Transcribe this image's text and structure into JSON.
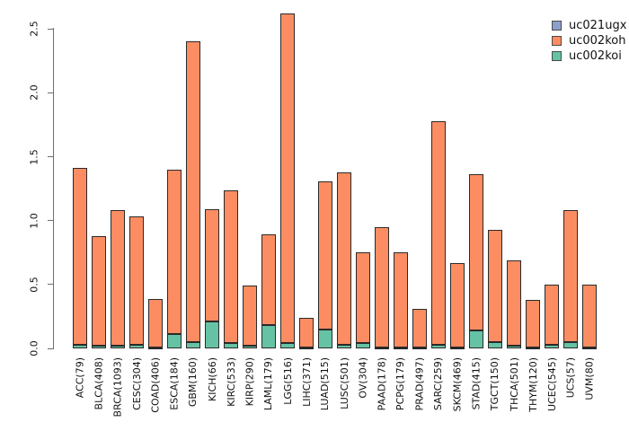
{
  "chart_data": {
    "type": "bar",
    "stacked": true,
    "title": "",
    "xlabel": "",
    "ylabel": "",
    "background": "#ffffff",
    "grid": false,
    "legend_position": "top-right",
    "ylim": [
      0,
      2.5
    ],
    "yticks": [
      0.0,
      0.5,
      1.0,
      1.5,
      2.0,
      2.5
    ],
    "ytick_labels": [
      "0.0",
      "0.5",
      "1.0",
      "1.5",
      "2.0",
      "2.5"
    ],
    "bar_border_color": "#2a2a2a",
    "categories": [
      "ACC(79)",
      "BLCA(408)",
      "BRCA(1093)",
      "CESC(304)",
      "COAD(406)",
      "ESCA(184)",
      "GBM(160)",
      "KICH(66)",
      "KIRC(533)",
      "KIRP(290)",
      "LAML(179)",
      "LGG(516)",
      "LIHC(371)",
      "LUAD(515)",
      "LUSC(501)",
      "OV(304)",
      "PAAD(178)",
      "PCPG(179)",
      "PRAD(497)",
      "SARC(259)",
      "SKCM(469)",
      "STAD(415)",
      "TGCT(150)",
      "THCA(501)",
      "THYM(120)",
      "UCEC(545)",
      "UCS(57)",
      "UVM(80)"
    ],
    "stack_order_bottom_to_top": [
      "uc002koi",
      "uc002koh",
      "uc021ugx"
    ],
    "series": [
      {
        "name": "uc021ugx",
        "color": "#8DA0CB",
        "values": [
          0,
          0,
          0,
          0,
          0,
          0,
          0,
          0,
          0,
          0,
          0,
          0,
          0,
          0,
          0,
          0,
          0,
          0,
          0,
          0,
          0,
          0,
          0,
          0,
          0,
          0,
          0,
          0
        ]
      },
      {
        "name": "uc002koh",
        "color": "#FC8D62",
        "values": [
          1.38,
          0.86,
          1.06,
          1.0,
          0.38,
          1.29,
          2.35,
          0.88,
          1.2,
          0.47,
          0.71,
          2.58,
          0.23,
          1.16,
          1.35,
          0.71,
          0.94,
          0.74,
          0.3,
          1.75,
          0.66,
          1.22,
          0.88,
          0.67,
          0.37,
          0.47,
          1.03,
          0.49
        ]
      },
      {
        "name": "uc002koi",
        "color": "#66C2A5",
        "values": [
          0.03,
          0.02,
          0.02,
          0.03,
          0.01,
          0.11,
          0.05,
          0.21,
          0.04,
          0.02,
          0.18,
          0.04,
          0.01,
          0.15,
          0.03,
          0.04,
          0.01,
          0.01,
          0.01,
          0.03,
          0.01,
          0.14,
          0.05,
          0.02,
          0.01,
          0.03,
          0.05,
          0.01
        ]
      }
    ],
    "totals": [
      1.41,
      0.88,
      1.08,
      1.03,
      0.39,
      1.4,
      2.4,
      1.09,
      1.24,
      0.49,
      0.89,
      2.62,
      0.24,
      1.31,
      1.38,
      0.75,
      0.95,
      0.75,
      0.31,
      1.78,
      0.67,
      1.36,
      0.93,
      0.69,
      0.38,
      0.5,
      1.08,
      0.5
    ]
  }
}
